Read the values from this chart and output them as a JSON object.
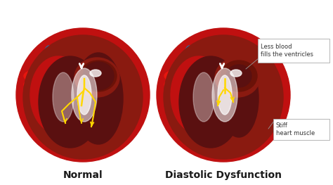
{
  "bg_color": "#ffffff",
  "title_left": "Normal",
  "title_right": "Diastolic Dysfunction",
  "annotation1_text": "Less blood\nfills the ventricles",
  "annotation2_text": "Stiff\nheart muscle",
  "title_fontsize": 10,
  "annotation_fontsize": 6.0,
  "red_bright": "#e8160e",
  "red_mid": "#c01010",
  "red_dark": "#8a1a10",
  "red_deep": "#6b1208",
  "blue_bright": "#2299dd",
  "blue_mid": "#1a7abf",
  "blue_dark": "#0a5a9a",
  "inner_dark": "#5a1010",
  "inner_mid": "#7a2010",
  "yellow": "#FFD700",
  "yellow2": "#e8c840",
  "white": "#ffffff",
  "offwhite": "#f0ece0",
  "gray_line": "#999999"
}
